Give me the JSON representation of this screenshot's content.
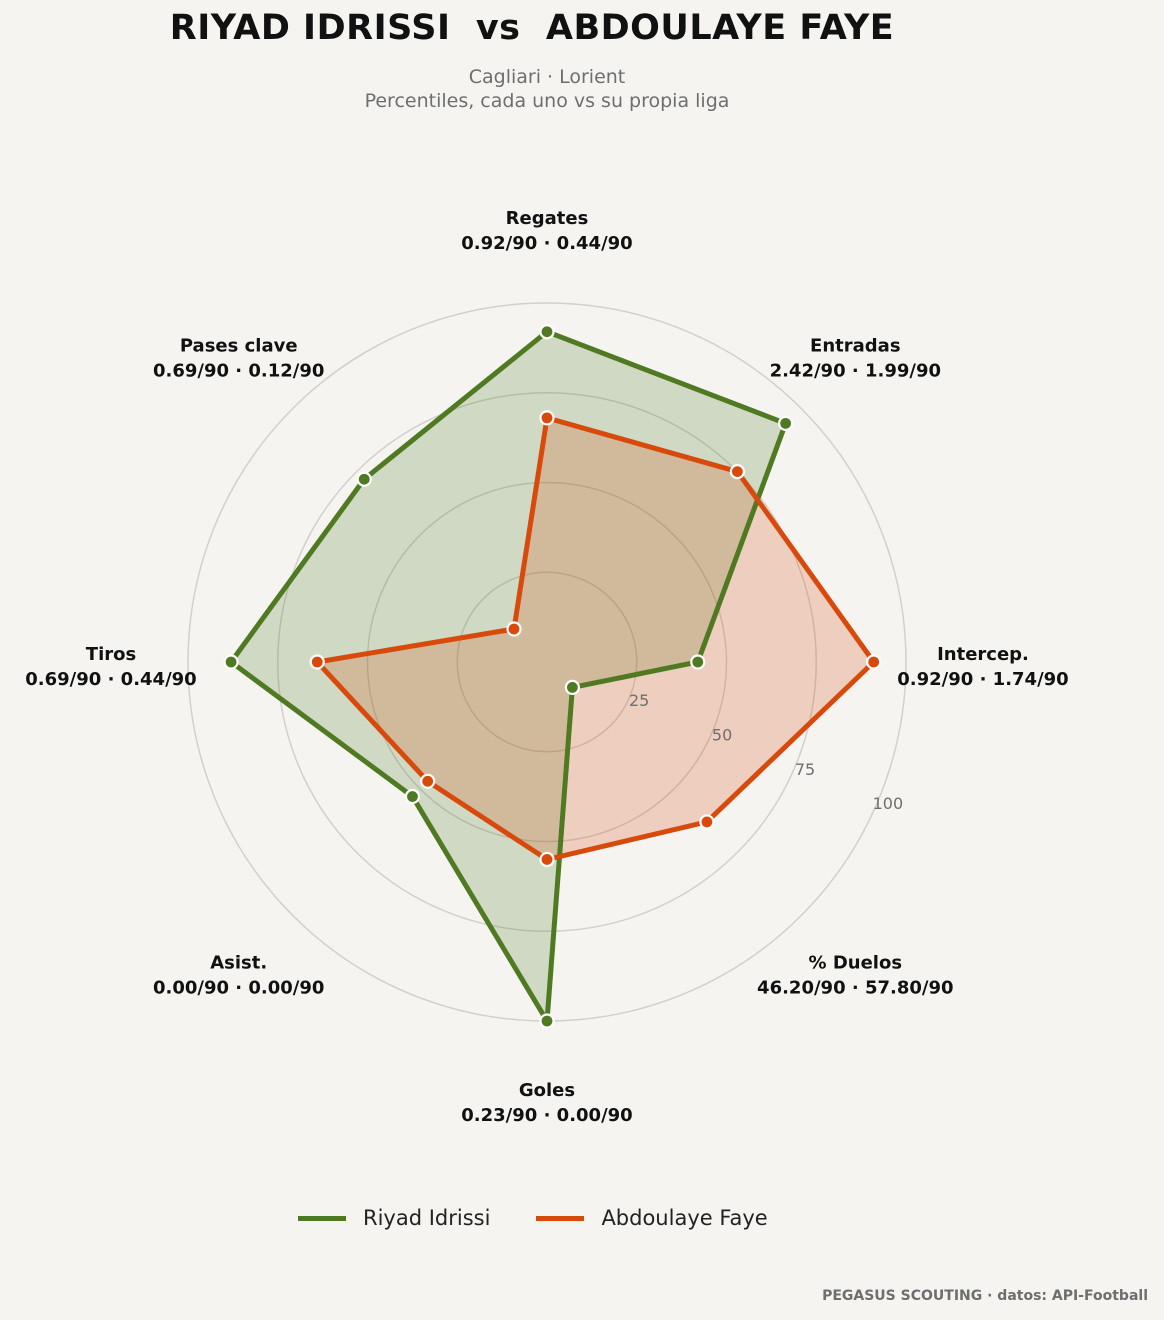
{
  "title": "RIYAD IDRISSI  vs  ABDOULAYE FAYE",
  "subtitle_line1": "Cagliari · Lorient",
  "subtitle_line2": "Percentiles, cada uno vs su propia liga",
  "footer": "PEGASUS SCOUTING · datos: API-Football",
  "colors": {
    "player1": "#4f7a22",
    "player2": "#d84a0c",
    "background": "#f5f4f1",
    "grid": "#d2d0cc"
  },
  "chart_data": {
    "type": "radar",
    "axes": [
      {
        "label": "Regates",
        "values_text": "0.92/90 · 0.44/90"
      },
      {
        "label": "Entradas",
        "values_text": "2.42/90 · 1.99/90"
      },
      {
        "label": "Intercep.",
        "values_text": "0.92/90 · 1.74/90"
      },
      {
        "label": "% Duelos",
        "values_text": "46.20/90 · 57.80/90"
      },
      {
        "label": "Goles",
        "values_text": "0.23/90 · 0.00/90"
      },
      {
        "label": "Asist.",
        "values_text": "0.00/90 · 0.00/90"
      },
      {
        "label": "Tiros",
        "values_text": "0.69/90 · 0.44/90"
      },
      {
        "label": "Pases clave",
        "values_text": "0.69/90 · 0.12/90"
      }
    ],
    "rlim": [
      0,
      100
    ],
    "rticks": [
      25,
      50,
      75,
      100
    ],
    "series": [
      {
        "name": "Riyad Idrissi",
        "values": [
          92,
          94,
          42,
          10,
          100,
          53,
          88,
          72
        ]
      },
      {
        "name": "Abdoulaye Faye",
        "values": [
          68,
          75,
          91,
          63,
          55,
          47,
          64,
          13
        ]
      }
    ]
  },
  "legend": {
    "items": [
      "Riyad Idrissi",
      "Abdoulaye Faye"
    ]
  }
}
